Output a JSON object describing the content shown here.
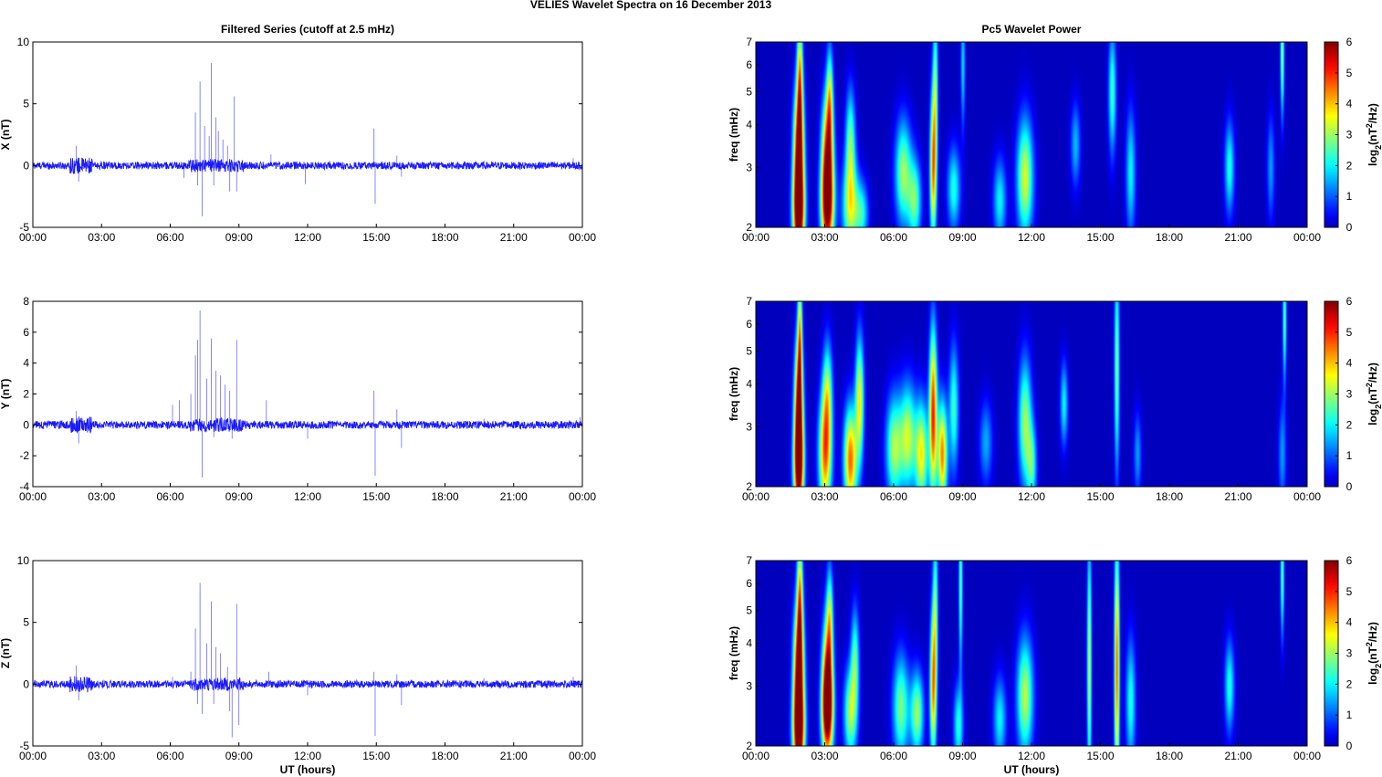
{
  "figure": {
    "suptitle": "VELIES Wavelet Spectra on 16 December  2013",
    "left_title": "Filtered Series (cutoff at 2.5 mHz)",
    "right_title": "Pc5 Wavelet Power"
  },
  "colors": {
    "line": "#1a1aff",
    "jet_low": "#00008f",
    "jet_high": "#800000"
  },
  "chart_data": [
    {
      "type": "line",
      "component": "X",
      "ylabel": "X (nT)",
      "xlabel": "",
      "xlim": [
        0,
        24
      ],
      "ylim": [
        -5,
        10
      ],
      "xticklabels": [
        "00:00",
        "03:00",
        "06:00",
        "09:00",
        "12:00",
        "15:00",
        "18:00",
        "21:00",
        "00:00"
      ],
      "yticks": [
        -5,
        0,
        5,
        10
      ],
      "noise_amplitude": 0.3,
      "spikes": [
        {
          "x": 1.9,
          "y": 1.6
        },
        {
          "x": 2.0,
          "y": -1.3
        },
        {
          "x": 6.6,
          "y": -1.0
        },
        {
          "x": 7.1,
          "y": 4.3
        },
        {
          "x": 7.2,
          "y": -1.6
        },
        {
          "x": 7.3,
          "y": 6.8
        },
        {
          "x": 7.4,
          "y": -4.1
        },
        {
          "x": 7.5,
          "y": 3.2
        },
        {
          "x": 7.7,
          "y": 2.4
        },
        {
          "x": 7.8,
          "y": 8.3
        },
        {
          "x": 7.9,
          "y": -1.6
        },
        {
          "x": 8.0,
          "y": 3.9
        },
        {
          "x": 8.1,
          "y": 2.8
        },
        {
          "x": 8.3,
          "y": 2.1
        },
        {
          "x": 8.5,
          "y": 1.6
        },
        {
          "x": 8.6,
          "y": -2.1
        },
        {
          "x": 8.8,
          "y": 5.6
        },
        {
          "x": 8.9,
          "y": -2.1
        },
        {
          "x": 10.4,
          "y": 0.9
        },
        {
          "x": 11.9,
          "y": -1.5
        },
        {
          "x": 14.9,
          "y": 3.0
        },
        {
          "x": 14.95,
          "y": -3.1
        },
        {
          "x": 15.9,
          "y": 0.8
        },
        {
          "x": 16.1,
          "y": -0.9
        },
        {
          "x": 19.7,
          "y": 0.4
        },
        {
          "x": 23.6,
          "y": 0.6
        }
      ]
    },
    {
      "type": "line",
      "component": "Y",
      "ylabel": "Y (nT)",
      "xlabel": "",
      "xlim": [
        0,
        24
      ],
      "ylim": [
        -4,
        8
      ],
      "xticklabels": [
        "00:00",
        "03:00",
        "06:00",
        "09:00",
        "12:00",
        "15:00",
        "18:00",
        "21:00",
        "00:00"
      ],
      "yticks": [
        -4,
        -2,
        0,
        2,
        4,
        6,
        8
      ],
      "noise_amplitude": 0.25,
      "spikes": [
        {
          "x": 1.9,
          "y": 0.9
        },
        {
          "x": 2.0,
          "y": -1.2
        },
        {
          "x": 6.1,
          "y": 1.3
        },
        {
          "x": 6.4,
          "y": 1.6
        },
        {
          "x": 6.9,
          "y": 2.0
        },
        {
          "x": 7.1,
          "y": 4.5
        },
        {
          "x": 7.2,
          "y": 5.5
        },
        {
          "x": 7.3,
          "y": 7.4
        },
        {
          "x": 7.4,
          "y": -3.4
        },
        {
          "x": 7.6,
          "y": 3.0
        },
        {
          "x": 7.8,
          "y": 5.6
        },
        {
          "x": 7.9,
          "y": -0.8
        },
        {
          "x": 8.0,
          "y": 3.5
        },
        {
          "x": 8.2,
          "y": 3.2
        },
        {
          "x": 8.4,
          "y": 2.6
        },
        {
          "x": 8.6,
          "y": 2.2
        },
        {
          "x": 8.7,
          "y": -0.9
        },
        {
          "x": 8.9,
          "y": 5.5
        },
        {
          "x": 10.2,
          "y": 1.6
        },
        {
          "x": 12.0,
          "y": -0.9
        },
        {
          "x": 14.9,
          "y": 2.2
        },
        {
          "x": 14.95,
          "y": -3.3
        },
        {
          "x": 15.9,
          "y": 1.0
        },
        {
          "x": 16.1,
          "y": -1.5
        },
        {
          "x": 19.7,
          "y": 0.4
        },
        {
          "x": 23.9,
          "y": 0.5
        }
      ]
    },
    {
      "type": "line",
      "component": "Z",
      "ylabel": "Z (nT)",
      "xlabel": "UT (hours)",
      "xlim": [
        0,
        24
      ],
      "ylim": [
        -5,
        10
      ],
      "xticklabels": [
        "00:00",
        "03:00",
        "06:00",
        "09:00",
        "12:00",
        "15:00",
        "18:00",
        "21:00",
        "00:00"
      ],
      "yticks": [
        -5,
        0,
        5,
        10
      ],
      "noise_amplitude": 0.3,
      "spikes": [
        {
          "x": 1.9,
          "y": 1.5
        },
        {
          "x": 2.0,
          "y": -1.3
        },
        {
          "x": 6.1,
          "y": 0.6
        },
        {
          "x": 6.9,
          "y": 1.0
        },
        {
          "x": 7.1,
          "y": 4.5
        },
        {
          "x": 7.2,
          "y": -1.6
        },
        {
          "x": 7.3,
          "y": 8.2
        },
        {
          "x": 7.4,
          "y": -2.4
        },
        {
          "x": 7.6,
          "y": 3.3
        },
        {
          "x": 7.8,
          "y": 6.7
        },
        {
          "x": 7.9,
          "y": -1.6
        },
        {
          "x": 8.0,
          "y": 3.0
        },
        {
          "x": 8.2,
          "y": 2.5
        },
        {
          "x": 8.5,
          "y": 1.4
        },
        {
          "x": 8.6,
          "y": -2.2
        },
        {
          "x": 8.7,
          "y": -4.3
        },
        {
          "x": 8.9,
          "y": 6.5
        },
        {
          "x": 9.0,
          "y": -3.3
        },
        {
          "x": 10.3,
          "y": 1.0
        },
        {
          "x": 12.0,
          "y": -0.9
        },
        {
          "x": 14.9,
          "y": 1.0
        },
        {
          "x": 14.95,
          "y": -4.2
        },
        {
          "x": 15.9,
          "y": 0.8
        },
        {
          "x": 16.1,
          "y": -1.7
        },
        {
          "x": 19.7,
          "y": 0.5
        },
        {
          "x": 23.6,
          "y": 0.6
        }
      ]
    },
    {
      "type": "heatmap",
      "component": "X",
      "ylabel": "freq (mHz)",
      "xlabel": "",
      "xlim": [
        0,
        24
      ],
      "ylim": [
        2,
        7
      ],
      "yscale": "log",
      "yticks": [
        2,
        3,
        4,
        5,
        6,
        7
      ],
      "xticklabels": [
        "00:00",
        "03:00",
        "06:00",
        "09:00",
        "12:00",
        "15:00",
        "18:00",
        "21:00",
        "00:00"
      ],
      "colorbar": {
        "label_main": "log",
        "label_sub": "2",
        "label_rest": "(nT",
        "label_sup": "2",
        "label_end": "/Hz)",
        "clim": [
          0,
          6
        ],
        "ticks": [
          0,
          1,
          2,
          3,
          4,
          5,
          6
        ]
      },
      "blobs": [
        {
          "t": 1.85,
          "f": 2.2,
          "p": 6.1,
          "w": 0.18,
          "fw": 0.22
        },
        {
          "t": 1.85,
          "f": 3.4,
          "p": 5.8,
          "w": 0.16,
          "fw": 0.3
        },
        {
          "t": 1.9,
          "f": 5.6,
          "p": 3.6,
          "w": 0.09,
          "fw": 0.3
        },
        {
          "t": 3.1,
          "f": 2.3,
          "p": 5.3,
          "w": 0.2,
          "fw": 0.22
        },
        {
          "t": 3.1,
          "f": 3.3,
          "p": 4.8,
          "w": 0.18,
          "fw": 0.28
        },
        {
          "t": 3.2,
          "f": 4.8,
          "p": 2.8,
          "w": 0.1,
          "fw": 0.25
        },
        {
          "t": 4.1,
          "f": 2.3,
          "p": 3.2,
          "w": 0.25,
          "fw": 0.22
        },
        {
          "t": 4.1,
          "f": 3.6,
          "p": 2.6,
          "w": 0.15,
          "fw": 0.25
        },
        {
          "t": 4.6,
          "f": 2.2,
          "p": 2.0,
          "w": 0.2,
          "fw": 0.15
        },
        {
          "t": 6.4,
          "f": 2.9,
          "p": 3.0,
          "w": 0.25,
          "fw": 0.25
        },
        {
          "t": 6.9,
          "f": 2.4,
          "p": 2.6,
          "w": 0.2,
          "fw": 0.2
        },
        {
          "t": 7.7,
          "f": 3.0,
          "p": 4.3,
          "w": 0.1,
          "fw": 0.35
        },
        {
          "t": 7.8,
          "f": 5.2,
          "p": 2.5,
          "w": 0.08,
          "fw": 0.4
        },
        {
          "t": 8.6,
          "f": 2.6,
          "p": 2.2,
          "w": 0.2,
          "fw": 0.2
        },
        {
          "t": 9.0,
          "f": 6.0,
          "p": 1.8,
          "w": 0.07,
          "fw": 0.3
        },
        {
          "t": 10.6,
          "f": 2.4,
          "p": 2.0,
          "w": 0.2,
          "fw": 0.2
        },
        {
          "t": 11.7,
          "f": 2.8,
          "p": 3.4,
          "w": 0.25,
          "fw": 0.28
        },
        {
          "t": 13.9,
          "f": 3.5,
          "p": 1.6,
          "w": 0.15,
          "fw": 0.2
        },
        {
          "t": 15.5,
          "f": 5.0,
          "p": 2.4,
          "w": 0.12,
          "fw": 0.3
        },
        {
          "t": 16.3,
          "f": 2.9,
          "p": 2.0,
          "w": 0.15,
          "fw": 0.3
        },
        {
          "t": 20.6,
          "f": 3.0,
          "p": 2.2,
          "w": 0.15,
          "fw": 0.22
        },
        {
          "t": 22.4,
          "f": 3.0,
          "p": 1.4,
          "w": 0.12,
          "fw": 0.25
        },
        {
          "t": 22.9,
          "f": 6.5,
          "p": 3.0,
          "w": 0.06,
          "fw": 0.3
        }
      ]
    },
    {
      "type": "heatmap",
      "component": "Y",
      "ylabel": "freq (mHz)",
      "xlabel": "",
      "xlim": [
        0,
        24
      ],
      "ylim": [
        2,
        7
      ],
      "yscale": "log",
      "yticks": [
        2,
        3,
        4,
        5,
        6,
        7
      ],
      "xticklabels": [
        "00:00",
        "03:00",
        "06:00",
        "09:00",
        "12:00",
        "15:00",
        "18:00",
        "21:00",
        "00:00"
      ],
      "colorbar": {
        "label_main": "log",
        "label_sub": "2",
        "label_rest": "(nT",
        "label_sup": "2",
        "label_end": "/Hz)",
        "clim": [
          0,
          6
        ],
        "ticks": [
          0,
          1,
          2,
          3,
          4,
          5,
          6
        ]
      },
      "blobs": [
        {
          "t": 1.85,
          "f": 2.3,
          "p": 6.0,
          "w": 0.16,
          "fw": 0.25
        },
        {
          "t": 1.85,
          "f": 3.6,
          "p": 5.3,
          "w": 0.13,
          "fw": 0.3
        },
        {
          "t": 1.9,
          "f": 5.8,
          "p": 3.2,
          "w": 0.07,
          "fw": 0.3
        },
        {
          "t": 3.0,
          "f": 2.5,
          "p": 4.4,
          "w": 0.2,
          "fw": 0.28
        },
        {
          "t": 3.1,
          "f": 3.8,
          "p": 2.6,
          "w": 0.15,
          "fw": 0.25
        },
        {
          "t": 4.1,
          "f": 2.4,
          "p": 4.6,
          "w": 0.2,
          "fw": 0.25
        },
        {
          "t": 4.5,
          "f": 3.6,
          "p": 3.6,
          "w": 0.13,
          "fw": 0.3
        },
        {
          "t": 6.0,
          "f": 2.6,
          "p": 3.0,
          "w": 0.25,
          "fw": 0.25
        },
        {
          "t": 6.6,
          "f": 2.8,
          "p": 3.2,
          "w": 0.25,
          "fw": 0.25
        },
        {
          "t": 7.2,
          "f": 2.5,
          "p": 3.6,
          "w": 0.2,
          "fw": 0.25
        },
        {
          "t": 7.7,
          "f": 3.3,
          "p": 5.0,
          "w": 0.12,
          "fw": 0.4
        },
        {
          "t": 8.1,
          "f": 2.5,
          "p": 4.4,
          "w": 0.15,
          "fw": 0.25
        },
        {
          "t": 8.6,
          "f": 3.4,
          "p": 2.4,
          "w": 0.15,
          "fw": 0.3
        },
        {
          "t": 10.0,
          "f": 2.7,
          "p": 1.5,
          "w": 0.2,
          "fw": 0.2
        },
        {
          "t": 11.7,
          "f": 3.1,
          "p": 3.0,
          "w": 0.2,
          "fw": 0.3
        },
        {
          "t": 12.0,
          "f": 2.3,
          "p": 2.2,
          "w": 0.15,
          "fw": 0.2
        },
        {
          "t": 13.4,
          "f": 3.5,
          "p": 2.0,
          "w": 0.12,
          "fw": 0.2
        },
        {
          "t": 15.7,
          "f": 4.5,
          "p": 2.8,
          "w": 0.08,
          "fw": 0.5
        },
        {
          "t": 16.6,
          "f": 2.5,
          "p": 1.4,
          "w": 0.12,
          "fw": 0.2
        },
        {
          "t": 22.9,
          "f": 2.5,
          "p": 1.4,
          "w": 0.12,
          "fw": 0.25
        },
        {
          "t": 23.0,
          "f": 6.3,
          "p": 2.6,
          "w": 0.06,
          "fw": 0.3
        }
      ]
    },
    {
      "type": "heatmap",
      "component": "Z",
      "ylabel": "freq (mHz)",
      "xlabel": "UT (hours)",
      "xlim": [
        0,
        24
      ],
      "ylim": [
        2,
        7
      ],
      "yscale": "log",
      "yticks": [
        2,
        3,
        4,
        5,
        6,
        7
      ],
      "xticklabels": [
        "00:00",
        "03:00",
        "06:00",
        "09:00",
        "12:00",
        "15:00",
        "18:00",
        "21:00",
        "00:00"
      ],
      "colorbar": {
        "label_main": "log",
        "label_sub": "2",
        "label_rest": "(nT",
        "label_sup": "2",
        "label_end": "/Hz)",
        "clim": [
          0,
          6
        ],
        "ticks": [
          0,
          1,
          2,
          3,
          4,
          5,
          6
        ]
      },
      "blobs": [
        {
          "t": 1.85,
          "f": 2.2,
          "p": 6.1,
          "w": 0.18,
          "fw": 0.22
        },
        {
          "t": 1.85,
          "f": 3.4,
          "p": 5.9,
          "w": 0.16,
          "fw": 0.3
        },
        {
          "t": 1.9,
          "f": 5.6,
          "p": 3.6,
          "w": 0.09,
          "fw": 0.3
        },
        {
          "t": 3.1,
          "f": 2.5,
          "p": 5.4,
          "w": 0.18,
          "fw": 0.22
        },
        {
          "t": 3.1,
          "f": 3.3,
          "p": 4.2,
          "w": 0.16,
          "fw": 0.28
        },
        {
          "t": 3.2,
          "f": 4.8,
          "p": 2.6,
          "w": 0.1,
          "fw": 0.25
        },
        {
          "t": 4.1,
          "f": 2.5,
          "p": 3.0,
          "w": 0.2,
          "fw": 0.22
        },
        {
          "t": 4.3,
          "f": 3.6,
          "p": 2.4,
          "w": 0.13,
          "fw": 0.25
        },
        {
          "t": 6.3,
          "f": 2.6,
          "p": 2.8,
          "w": 0.25,
          "fw": 0.25
        },
        {
          "t": 7.0,
          "f": 2.5,
          "p": 3.0,
          "w": 0.2,
          "fw": 0.2
        },
        {
          "t": 7.7,
          "f": 3.0,
          "p": 4.2,
          "w": 0.1,
          "fw": 0.35
        },
        {
          "t": 7.8,
          "f": 5.2,
          "p": 2.4,
          "w": 0.08,
          "fw": 0.4
        },
        {
          "t": 8.8,
          "f": 2.3,
          "p": 2.2,
          "w": 0.15,
          "fw": 0.2
        },
        {
          "t": 8.9,
          "f": 6.0,
          "p": 2.6,
          "w": 0.06,
          "fw": 0.4
        },
        {
          "t": 10.6,
          "f": 2.4,
          "p": 2.0,
          "w": 0.2,
          "fw": 0.2
        },
        {
          "t": 11.7,
          "f": 2.8,
          "p": 3.2,
          "w": 0.25,
          "fw": 0.28
        },
        {
          "t": 14.5,
          "f": 3.5,
          "p": 3.2,
          "w": 0.07,
          "fw": 0.6
        },
        {
          "t": 15.7,
          "f": 3.4,
          "p": 4.6,
          "w": 0.08,
          "fw": 0.6
        },
        {
          "t": 16.3,
          "f": 2.7,
          "p": 2.2,
          "w": 0.15,
          "fw": 0.3
        },
        {
          "t": 20.6,
          "f": 3.0,
          "p": 2.2,
          "w": 0.15,
          "fw": 0.22
        },
        {
          "t": 22.9,
          "f": 6.4,
          "p": 2.6,
          "w": 0.06,
          "fw": 0.3
        }
      ]
    }
  ]
}
